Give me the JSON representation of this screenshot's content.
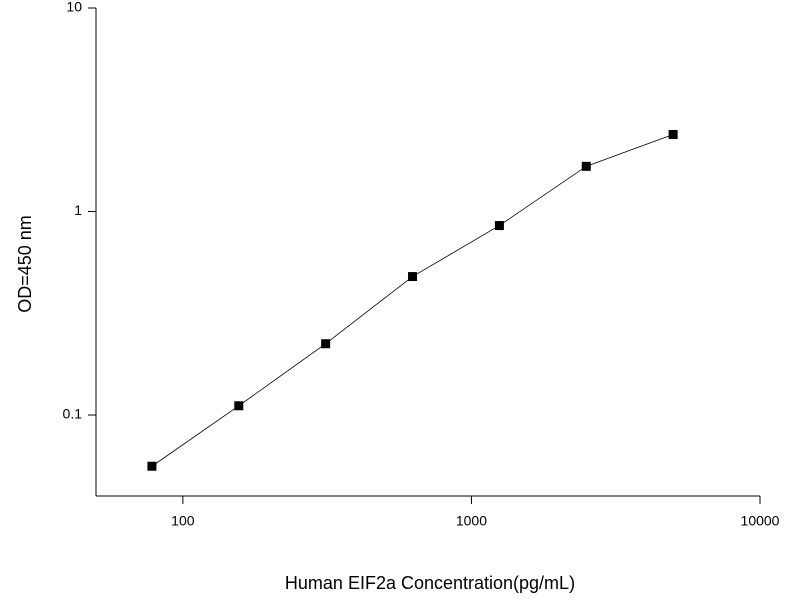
{
  "chart_data": {
    "type": "line",
    "log_x": true,
    "log_y": true,
    "x_label": "Human EIF2a Concentration(pg/mL)",
    "y_label": "OD=450 nm",
    "x": [
      78.125,
      156.25,
      312.5,
      625,
      1250,
      2500,
      5000
    ],
    "series": [
      {
        "color": "#000000",
        "values": [
          0.056,
          0.111,
          0.224,
          0.479,
          0.853,
          1.667,
          2.39
        ]
      }
    ],
    "xlim": [
      50,
      10000
    ],
    "xticks": [
      100,
      1000,
      10000
    ],
    "ylim": [
      0.04,
      10
    ],
    "yticks": [
      0.1,
      1,
      10
    ]
  }
}
